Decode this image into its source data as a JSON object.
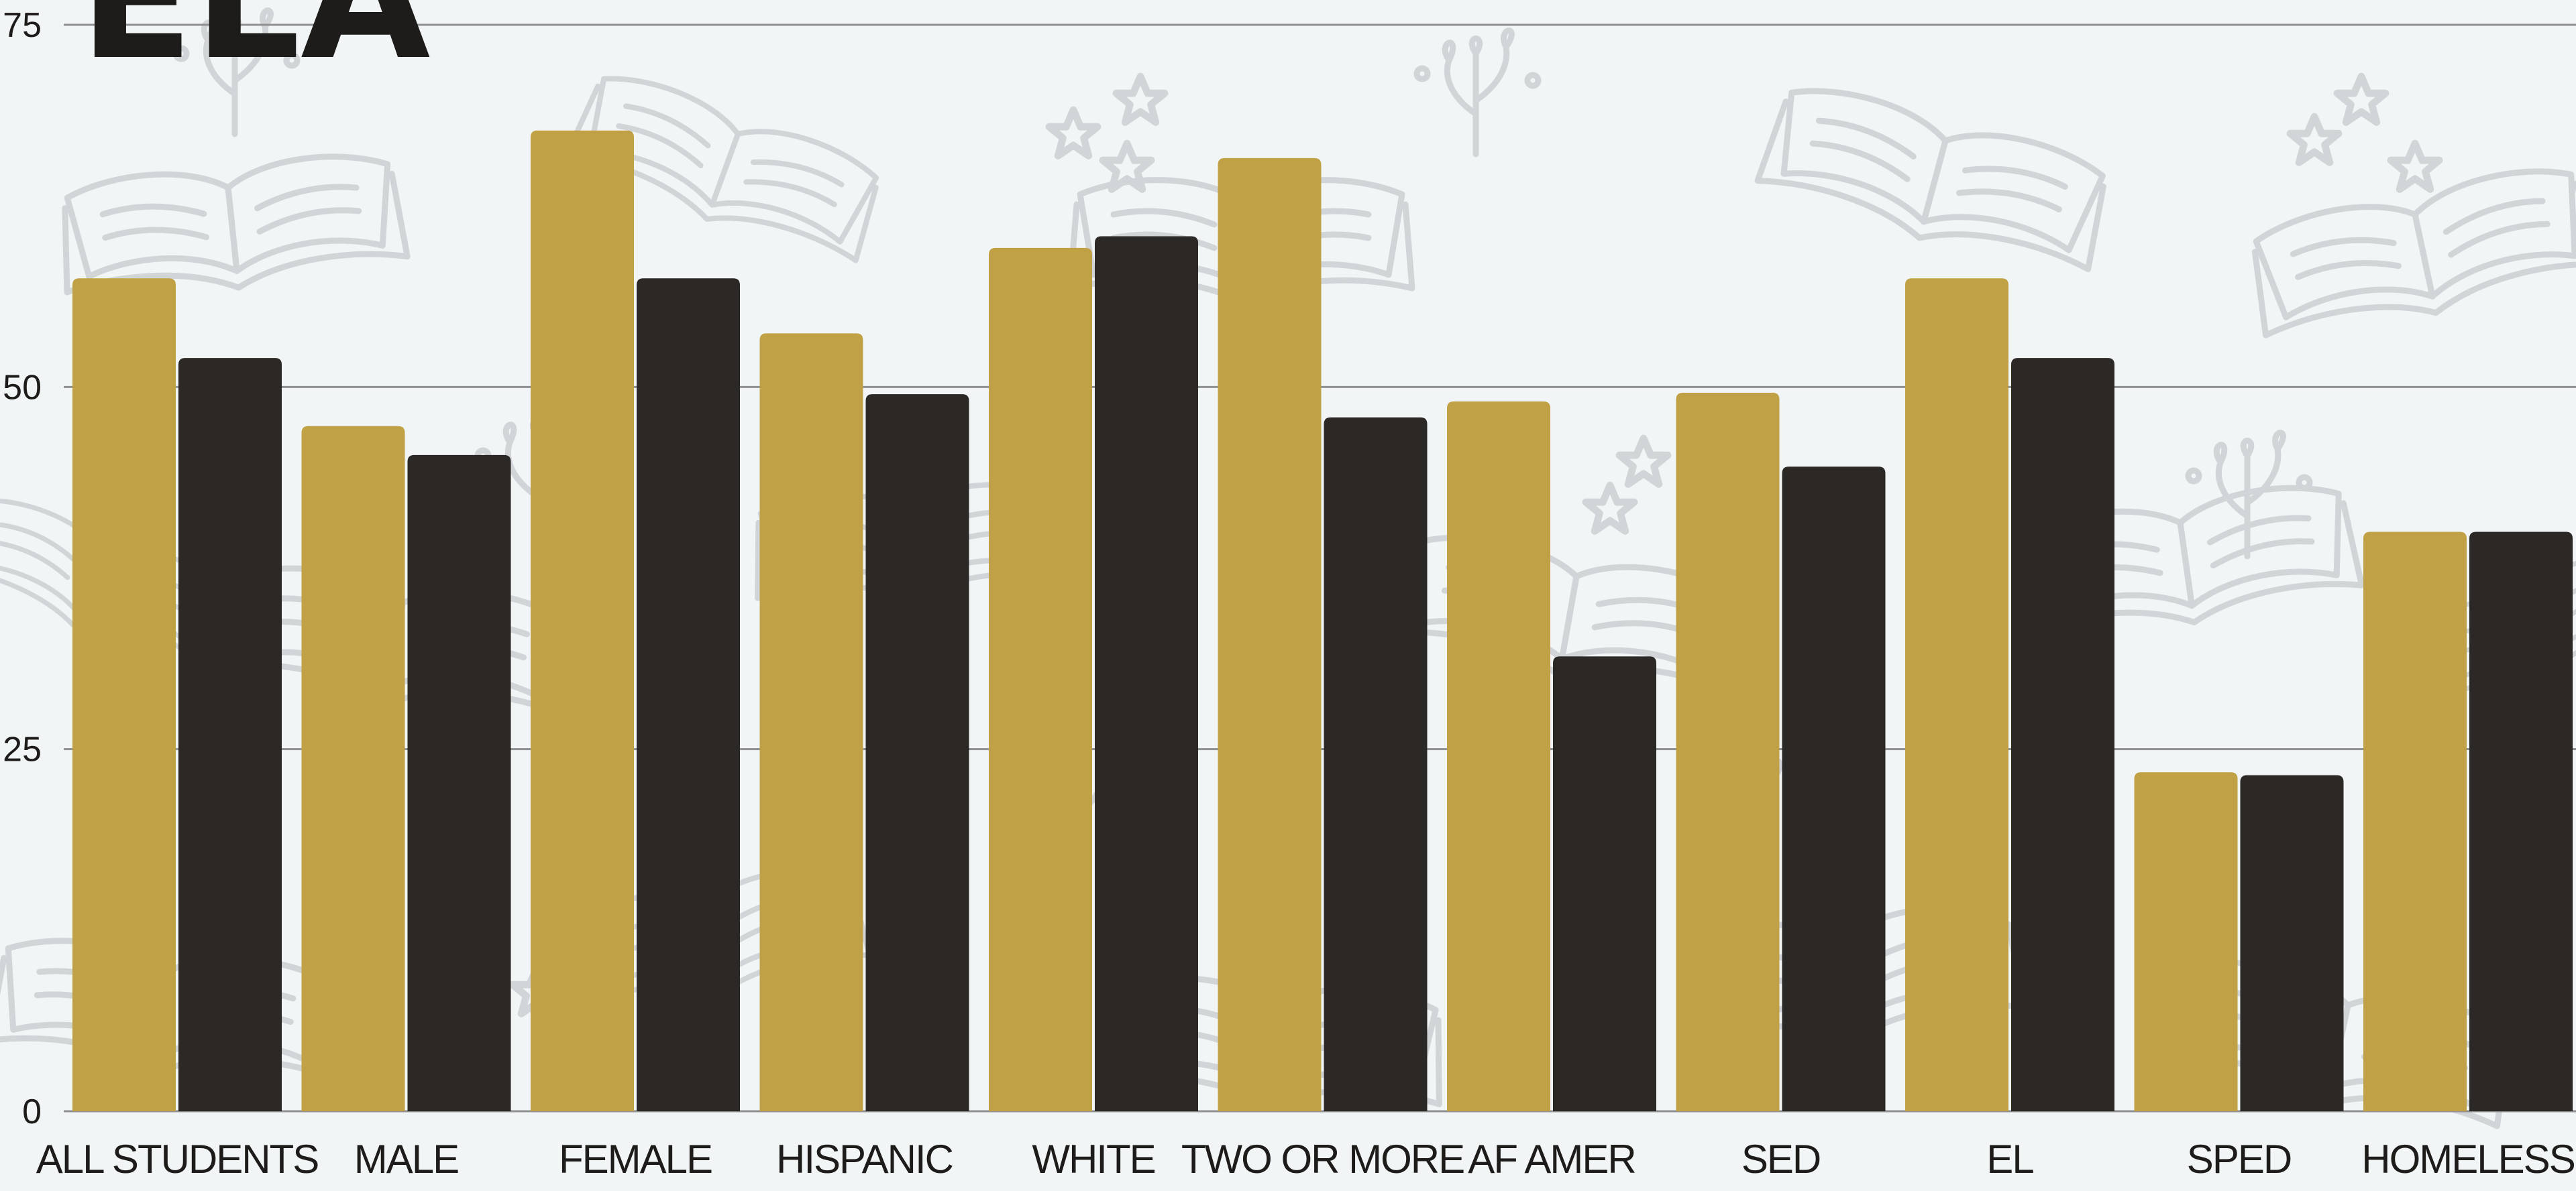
{
  "chart_data": {
    "type": "bar",
    "title": "ELA",
    "categories": [
      "ALL STUDENTS",
      "MALE",
      "FEMALE",
      "HISPANIC",
      "WHITE",
      "TWO OR MORE",
      "AF AMER",
      "SED",
      "EL",
      "SPED",
      "HOMELESS"
    ],
    "series": [
      {
        "values": [
          57.5,
          47.3,
          67.7,
          53.7,
          59.6,
          65.8,
          49,
          49.6,
          57.5,
          23.4,
          40
        ]
      },
      {
        "values": [
          52,
          45.3,
          57.5,
          49.5,
          60.4,
          47.9,
          31.4,
          44.5,
          52,
          23.2,
          40
        ]
      }
    ],
    "yticks": [
      0,
      25,
      50,
      75
    ],
    "ylim": [
      0,
      75
    ],
    "grid": true,
    "colors": {
      "series_1": "#c0a146",
      "series_2": "#2c2826",
      "background": "#f1f5f6",
      "gridline": "#8e9092",
      "text": "#1e1c1a",
      "doodles": "#d2d5d7"
    },
    "background_pattern": "open-book-doodles"
  }
}
